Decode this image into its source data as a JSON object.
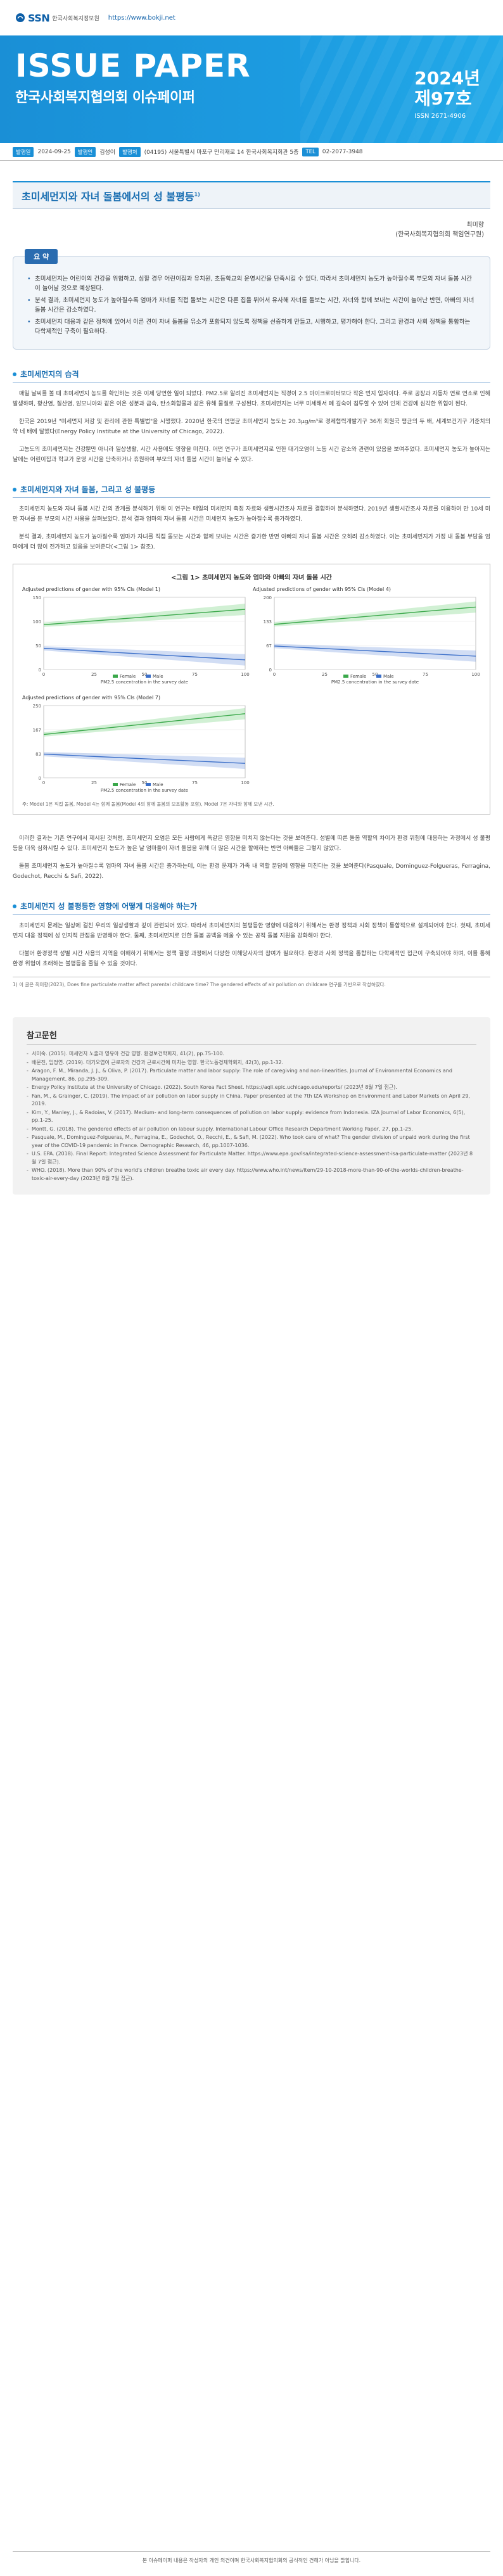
{
  "header": {
    "logo": "SSN",
    "logo_sub": "한국사회복지정보원",
    "url": "https://www.bokji.net"
  },
  "banner": {
    "title": "ISSUE PAPER",
    "subtitle": "한국사회복지협의회 이슈페이퍼",
    "year": "2024년",
    "issue_no": "제97호",
    "issn": "ISSN 2671-4906"
  },
  "meta": {
    "date_label": "발행일",
    "date": "2024-09-25",
    "publisher_label": "발행인",
    "publisher": "김성이",
    "org_label": "발행처",
    "org": "(04195) 서울특별시 마포구 만리재로 14 한국사회복지회관 5층",
    "tel_label": "TEL",
    "tel": "02-2077-3948"
  },
  "article": {
    "title": "초미세먼지와 자녀 돌봄에서의 성 불평등",
    "title_sup": "1)",
    "author_name": "최미향",
    "author_affil": "(한국사회복지협의회 책임연구원)"
  },
  "summary": {
    "label": "요 약",
    "items": [
      "초미세먼지는 어린이의 건강을 위협하고, 심할 경우 어린이집과 유치원, 초등학교의 운영시간을 단축시킬 수 있다. 따라서 초미세먼지 농도가 높아질수록 부모의 자녀 돌봄 시간이 늘어날 것으로 예상된다.",
      "분석 결과, 초미세먼지 농도가 높아질수록 엄마가 자녀를 직접 돌보는 시간은 다른 집을 뛰어서 유사해 자녀를 돌보는 시간, 자녀와 함께 보내는 시간이 늘어난 반면, 아빠의 자녀 돌봄 시간은 감소하였다.",
      "초미세먼지 대응과 같은 정책에 있어서 이른 견이 자녀 돌봄을 유소가 포함되지 않도록 정책을 선증하게 만들고, 시행하고, 평가해야 한다. 그리고 환경과 사회 정책을 통합하는 다학제적인 구축이 필요하다."
    ]
  },
  "sections": [
    {
      "heading": "초미세먼지의 습격",
      "paragraphs": [
        "매일 날씨를 볼 때 초미세먼지 농도를 확인하는 것은 이제 당연한 일이 되었다. PM2.5로 알려진 초미세먼지는 직경이 2.5 마이크로미터보다 작은 먼지 입자이다. 주로 공장과 자동차 연료 연소로 인해 발생하며, 황산염, 질산염, 암모니아와 같은 이온 성분과 금속, 탄소화합물과 같은 유해 물질로 구성된다. 초미세먼지는 너무 미세해서 폐 깊숙이 침투할 수 있어 인체 건강에 심각한 위협이 된다.",
        "한국은 2019년 \"미세먼지 저감 및 관리에 관한 특별법\"을 시행했다. 2020년 한국의 연평균 초미세먼지 농도는 20.3μg/m³로 경제협력개발기구 36개 회원국 평균의 두 배, 세계보건기구 기준치의 약 네 배에 달했다(Energy Policy Institute at the University of Chicago, 2022).",
        "고농도의 초미세먼지는 건강뿐만 아니라 일상생활, 시간 사용에도 영향을 미친다. 어떤 연구가 초미세먼지로 인한 대기오염이 노동 시간 감소와 관련이 있음을 보여주었다. 초미세먼지 농도가 높아지는 날에는 어린이집과 학교가 운영 시간을 단축하거나 휴원하여 부모의 자녀 돌봄 시간이 늘어날 수 있다."
      ]
    },
    {
      "heading": "초미세먼지와 자녀 돌봄, 그리고 성 불평등",
      "paragraphs": [
        "초미세먼지 농도와 자녀 돌봄 시간 간의 관계를 분석하기 위해 이 연구는 매일의 미세먼지 측정 자료와 생활시간조사 자료를 결합하여 분석하였다. 2019년 생활시간조사 자료를 이용하여 만 10세 미만 자녀를 둔 부모의 시간 사용을 살펴보았다. 분석 결과 엄마의 자녀 돌봄 시간은 미세먼지 농도가 높아질수록 증가하였다.",
        "분석 결과, 초미세먼지 농도가 높아질수록 엄마가 자녀를 직접 돌보는 시간과 함께 보내는 시간은 증가한 반면 아빠의 자녀 돌봄 시간은 오히려 감소하였다. 이는 초미세먼지가 가정 내 돌봄 부담을 엄마에게 더 많이 전가하고 있음을 보여준다(<그림 1> 참조)."
      ]
    }
  ],
  "figure": {
    "caption": "<그림 1> 초미세먼지 농도와 엄마와 아빠의 자녀 돌봄 시간",
    "panel_a_title": "Adjusted predictions of gender with 95% CIs (Model 1)",
    "panel_b_title": "Adjusted predictions of gender with 95% CIs (Model 4)",
    "panel_c_title": "Adjusted predictions of gender with 95% CIs (Model 7)",
    "xlabel": "PM2.5 concentration in the survey date",
    "legend_female": "Female",
    "legend_male": "Male",
    "note": "주: Model 1은 직접 돌봄, Model 4는 함께 돌봄(Model 4의 함께 돌봄의 보조활동 포함), Model 7은 자녀와 함께 보낸 시간."
  },
  "chart_data": [
    {
      "type": "line",
      "title": "Adjusted predictions of gender with 95% CIs (Model 1)",
      "xlabel": "PM2.5 concentration in the survey date",
      "x": [
        0,
        25,
        50,
        75,
        100
      ],
      "series": [
        {
          "name": "Female",
          "values": [
            93,
            101,
            109,
            117,
            125
          ]
        },
        {
          "name": "Male",
          "values": [
            44,
            38,
            32,
            26,
            20
          ]
        }
      ],
      "ylim": [
        0,
        150
      ]
    },
    {
      "type": "line",
      "title": "Adjusted predictions of gender with 95% CIs (Model 4)",
      "xlabel": "PM2.5 concentration in the survey date",
      "x": [
        0,
        25,
        50,
        75,
        100
      ],
      "series": [
        {
          "name": "Female",
          "values": [
            125,
            137,
            149,
            161,
            173
          ]
        },
        {
          "name": "Male",
          "values": [
            65,
            58,
            51,
            44,
            37
          ]
        }
      ],
      "ylim": [
        0,
        200
      ]
    },
    {
      "type": "line",
      "title": "Adjusted predictions of gender with 95% CIs (Model 7)",
      "xlabel": "PM2.5 concentration in the survey date",
      "x": [
        0,
        25,
        50,
        75,
        100
      ],
      "series": [
        {
          "name": "Female",
          "values": [
            150,
            168,
            186,
            204,
            222
          ]
        },
        {
          "name": "Male",
          "values": [
            82,
            74,
            66,
            58,
            50
          ]
        }
      ],
      "ylim": [
        0,
        250
      ]
    }
  ],
  "sections2": [
    {
      "heading": "",
      "paragraphs": [
        "이러한 결과는 기존 연구에서 제시된 것처럼, 초미세먼지 오염은 모든 사람에게 똑같은 영향을 미치지 않는다는 것을 보여준다. 성별에 따른 돌봄 역할의 차이가 환경 위험에 대응하는 과정에서 성 불평등을 더욱 심화시킬 수 있다. 초미세먼지 농도가 높은 날 엄마들이 자녀 돌봄을 위해 더 많은 시간을 할애하는 반면 아빠들은 그렇지 않았다.",
        "돌봄 초미세먼지 농도가 높아질수록 엄마의 자녀 돌봄 시간은 증가하는데, 이는 환경 문제가 가족 내 역할 분담에 영향을 미친다는 것을 보여준다(Pasquale, Dominguez-Folgueras, Ferragina, Godechot, Recchi & Safi, 2022)."
      ]
    },
    {
      "heading": "초미세먼지 성 불평등한 영향에 어떻게 대응해야 하는가",
      "paragraphs": [
        "초미세먼지 문제는 일상에 걸친 우리의 일상생활과 깊이 관련되어 있다. 따라서 초미세먼지의 불평등한 영향에 대응하기 위해서는 환경 정책과 사회 정책이 통합적으로 설계되어야 한다. 첫째, 초미세먼지 대응 정책에 성 인지적 관점을 반영해야 한다. 둘째, 초미세먼지로 인한 돌봄 공백을 메울 수 있는 공적 돌봄 지원을 강화해야 한다.",
        "다불어 환경정책 성별 시간 사용의 지역을 이해하기 위해서는 정책 결정 과정에서 다양한 이해당사자의 참여가 필요하다. 환경과 사회 정책을 통합하는 다학제적인 접근이 구축되어야 하며, 이를 통해 환경 위험이 초래하는 불평등을 줄일 수 있을 것이다."
      ]
    }
  ],
  "footnote": "1) 이 글은 최미향(2023), Does fine particulate matter affect parental childcare time? The gendered effects of air pollution on childcare 연구를 기반으로 작성하였다.",
  "references": {
    "title": "참고문헌",
    "items": [
      "서미숙. (2015). 미세먼지 노출과 영유아 건강 영향. 환경보건학회지, 41(2), pp.75-100.",
      "배문진, 임정연. (2019). 대기오염이 근로자의 건강과 근로시간에 미치는 영향. 한국노동경제학회지, 42(3), pp.1-32.",
      "Aragon, F. M., Miranda, J. J., & Oliva, P. (2017). Particulate matter and labor supply: The role of caregiving and non-linearities. Journal of Environmental Economics and Management, 86, pp.295-309.",
      "Energy Policy Institute at the University of Chicago. (2022). South Korea Fact Sheet. https://aqli.epic.uchicago.edu/reports/ (2023년 8월 7일 접근).",
      "Fan, M., & Grainger, C. (2019). The impact of air pollution on labor supply in China. Paper presented at the 7th IZA Workshop on Environment and Labor Markets on April 29, 2019.",
      "Kim, Y., Manley, J., & Radoias, V. (2017). Medium- and long-term consequences of pollution on labor supply: evidence from Indonesia. IZA Journal of Labor Economics, 6(5), pp.1-25.",
      "Montt, G. (2018). The gendered effects of air pollution on labour supply. International Labour Office Research Department Working Paper, 27, pp.1-25.",
      "Pasquale, M., Dominguez-Folgueras, M., Ferragina, E., Godechot, O., Recchi, E., & Safi, M. (2022). Who took care of what? The gender division of unpaid work during the first year of the COVID-19 pandemic in France. Demographic Research, 46, pp.1007-1036.",
      "U.S. EPA. (2018). Final Report: Integrated Science Assessment for Particulate Matter. https://www.epa.gov/isa/integrated-science-assessment-isa-particulate-matter (2023년 8월 7일 접근).",
      "WHO. (2018). More than 90% of the world's children breathe toxic air every day. https://www.who.int/news/item/29-10-2018-more-than-90-of-the-worlds-children-breathe-toxic-air-every-day (2023년 8월 7일 접근)."
    ]
  },
  "bottom_note": "본 이슈페이퍼 내용은 작성자의 개인 의견이며 한국사회복지협의회의 공식적인 견해가 아님을 밝힙니다."
}
